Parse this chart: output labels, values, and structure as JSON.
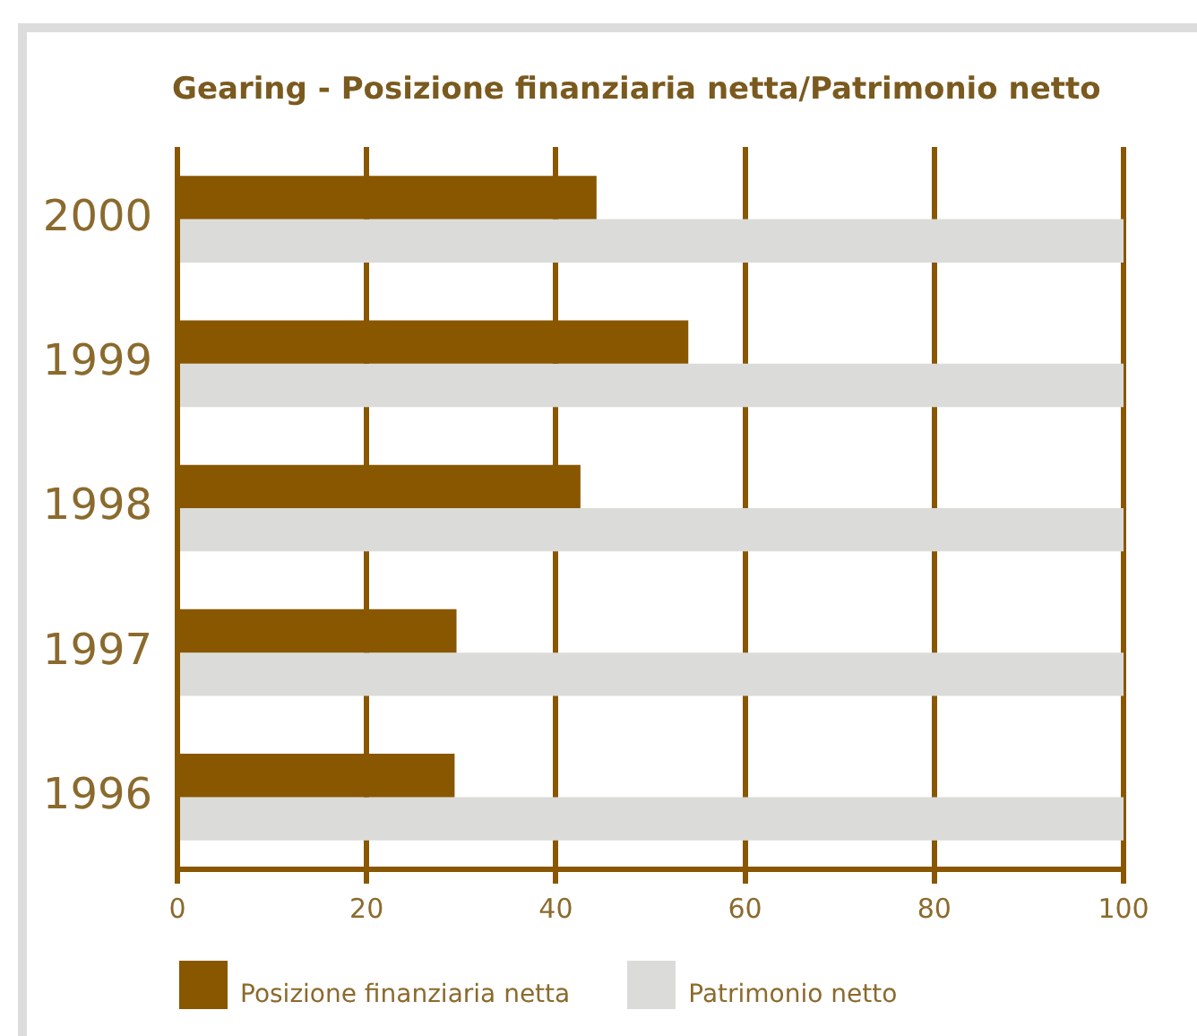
{
  "chart_data": {
    "type": "bar",
    "orientation": "horizontal",
    "title": "Gearing - Posizione finanziaria netta/Patrimonio netto",
    "categories": [
      "2000",
      "1999",
      "1998",
      "1997",
      "1996"
    ],
    "series": [
      {
        "name": "Posizione finanziaria netta",
        "color": "#885700",
        "values": [
          44.3,
          54,
          42.6,
          29.5,
          29.3
        ]
      },
      {
        "name": "Patrimonio netto",
        "color": "#dbdcd9",
        "values": [
          100,
          100,
          100,
          100,
          100
        ]
      }
    ],
    "xlim": [
      0,
      100
    ],
    "xticks": [
      0,
      20,
      40,
      60,
      80,
      100
    ],
    "grid": "x",
    "legend": "bottom"
  }
}
